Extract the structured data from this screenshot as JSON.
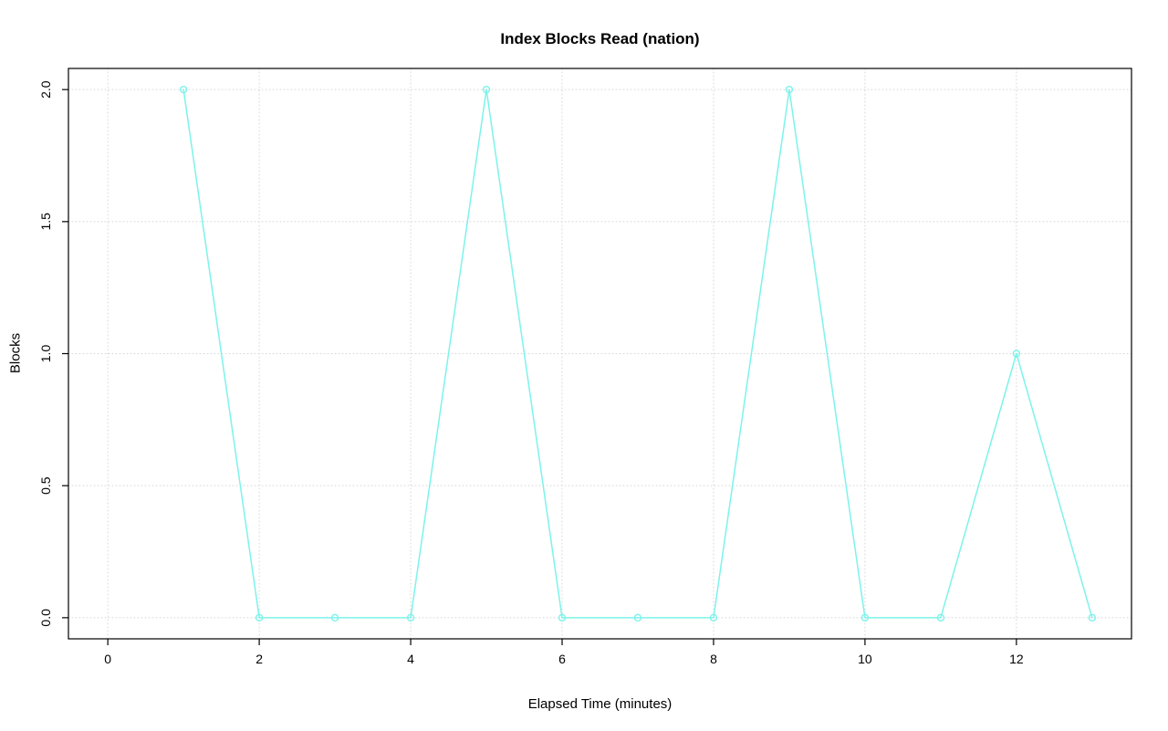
{
  "chart_data": {
    "type": "line",
    "title": "Index Blocks Read (nation)",
    "xlabel": "Elapsed Time (minutes)",
    "ylabel": "Blocks",
    "x": [
      1,
      2,
      3,
      4,
      5,
      6,
      7,
      8,
      9,
      10,
      11,
      12,
      13
    ],
    "y": [
      2,
      0,
      0,
      0,
      2,
      0,
      0,
      0,
      2,
      0,
      0,
      1,
      0
    ],
    "xticks": [
      0,
      2,
      4,
      6,
      8,
      10,
      12
    ],
    "xtick_labels": [
      "0",
      "2",
      "4",
      "6",
      "8",
      "10",
      "12"
    ],
    "yticks": [
      0.0,
      0.5,
      1.0,
      1.5,
      2.0
    ],
    "ytick_labels": [
      "0.0",
      "0.5",
      "1.0",
      "1.5",
      "2.0"
    ],
    "xlim": [
      -0.52,
      13.52
    ],
    "ylim": [
      -0.08,
      2.08
    ],
    "grid": true,
    "legend_position": "none",
    "line_color": "#7DF3EA",
    "marker": "open-circle",
    "grid_color": "#D8D8D8",
    "axis_color": "#000000",
    "background_color": "#FFFFFF"
  }
}
